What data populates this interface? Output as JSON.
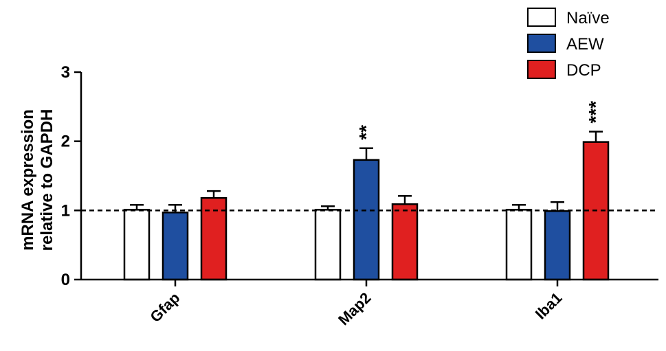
{
  "chart_data": {
    "type": "bar",
    "title": "",
    "xlabel": "",
    "ylabel_lines": [
      "mRNA expression",
      "relative to GAPDH"
    ],
    "ylim": [
      0,
      3
    ],
    "yticks": [
      "0",
      "1",
      "2",
      "3"
    ],
    "reference_line": 1,
    "legend_placement": "top-right",
    "categories": [
      "Gfap",
      "Map2",
      "Iba1"
    ],
    "series": [
      {
        "name": "Naïve",
        "color": "#ffffff",
        "values": [
          1.01,
          1.01,
          1.01
        ],
        "errors": [
          0.07,
          0.05,
          0.07
        ]
      },
      {
        "name": "AEW",
        "color": "#1f4fa0",
        "values": [
          0.97,
          1.73,
          0.99
        ],
        "errors": [
          0.11,
          0.17,
          0.13
        ]
      },
      {
        "name": "DCP",
        "color": "#e02020",
        "values": [
          1.18,
          1.09,
          1.99
        ],
        "errors": [
          0.1,
          0.12,
          0.15
        ]
      }
    ],
    "significance": [
      {
        "category": "Map2",
        "series": "AEW",
        "label": "**"
      },
      {
        "category": "Iba1",
        "series": "DCP",
        "label": "***"
      }
    ]
  }
}
